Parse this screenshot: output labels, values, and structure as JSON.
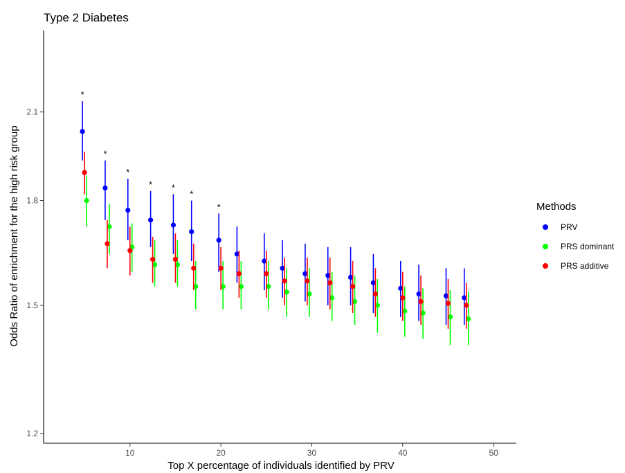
{
  "chart_data": {
    "type": "scatter",
    "title": "Type 2 Diabetes",
    "xlabel": "Top X percentage of individuals identified by PRV",
    "ylabel": "Odds Ratio of enrichment for the high risk group",
    "xlim": [
      0.5,
      52.5
    ],
    "ylim": [
      1.18,
      2.42
    ],
    "y_log_scale": true,
    "x_ticks": [
      10,
      20,
      30,
      40,
      50
    ],
    "y_ticks": [
      1.2,
      1.5,
      1.8,
      2.1
    ],
    "y_tick_labels": [
      "1.2",
      "1.5",
      "1.8",
      "2.1"
    ],
    "grid": false,
    "legend_title": "Methods",
    "legend_position": "right",
    "x": [
      5,
      7.5,
      10,
      12.5,
      15,
      17,
      20,
      22,
      25,
      27,
      29.5,
      32,
      34.5,
      37,
      40,
      42,
      45,
      47
    ],
    "series": [
      {
        "name": "PRV",
        "color": "#0000ff",
        "values": [
          2.03,
          1.84,
          1.77,
          1.74,
          1.725,
          1.705,
          1.68,
          1.64,
          1.62,
          1.6,
          1.585,
          1.58,
          1.575,
          1.56,
          1.545,
          1.53,
          1.525,
          1.52
        ],
        "lower": [
          1.93,
          1.74,
          1.68,
          1.66,
          1.64,
          1.62,
          1.59,
          1.56,
          1.54,
          1.52,
          1.51,
          1.5,
          1.5,
          1.48,
          1.47,
          1.46,
          1.45,
          1.45
        ],
        "upper": [
          2.14,
          1.93,
          1.87,
          1.83,
          1.82,
          1.8,
          1.76,
          1.72,
          1.7,
          1.68,
          1.67,
          1.66,
          1.66,
          1.64,
          1.62,
          1.61,
          1.6,
          1.6
        ]
      },
      {
        "name": "PRS dominant",
        "color": "#00ff00",
        "values": [
          1.8,
          1.72,
          1.66,
          1.61,
          1.61,
          1.55,
          1.55,
          1.55,
          1.55,
          1.535,
          1.53,
          1.52,
          1.51,
          1.5,
          1.485,
          1.48,
          1.47,
          1.465
        ],
        "lower": [
          1.72,
          1.64,
          1.59,
          1.55,
          1.55,
          1.49,
          1.49,
          1.49,
          1.49,
          1.47,
          1.47,
          1.46,
          1.45,
          1.43,
          1.42,
          1.415,
          1.4,
          1.4
        ],
        "upper": [
          1.88,
          1.79,
          1.73,
          1.68,
          1.68,
          1.62,
          1.62,
          1.62,
          1.62,
          1.6,
          1.6,
          1.59,
          1.58,
          1.57,
          1.55,
          1.545,
          1.54,
          1.535
        ]
      },
      {
        "name": "PRS additive",
        "color": "#ff0000",
        "values": [
          1.89,
          1.67,
          1.65,
          1.625,
          1.625,
          1.6,
          1.6,
          1.585,
          1.585,
          1.565,
          1.565,
          1.56,
          1.55,
          1.53,
          1.52,
          1.51,
          1.505,
          1.5
        ],
        "lower": [
          1.82,
          1.6,
          1.58,
          1.56,
          1.56,
          1.54,
          1.54,
          1.52,
          1.52,
          1.5,
          1.5,
          1.49,
          1.48,
          1.47,
          1.46,
          1.45,
          1.44,
          1.44
        ],
        "upper": [
          1.96,
          1.74,
          1.72,
          1.69,
          1.7,
          1.67,
          1.66,
          1.65,
          1.65,
          1.63,
          1.63,
          1.63,
          1.62,
          1.6,
          1.59,
          1.58,
          1.57,
          1.56
        ]
      }
    ],
    "annotations": [
      {
        "text": "*",
        "x": 5
      },
      {
        "text": "*",
        "x": 7.5
      },
      {
        "text": "*",
        "x": 10
      },
      {
        "text": "*",
        "x": 12.5
      },
      {
        "text": "*",
        "x": 15
      },
      {
        "text": "*",
        "x": 17
      },
      {
        "text": "*",
        "x": 20
      }
    ]
  }
}
